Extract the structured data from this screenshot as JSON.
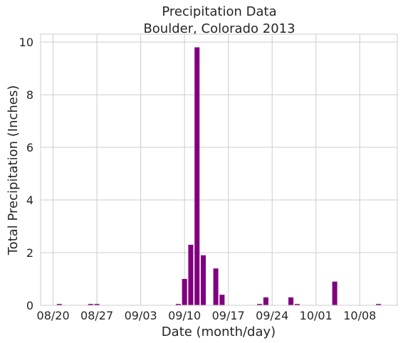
{
  "chart_data": {
    "type": "bar",
    "title": [
      "Precipitation Data",
      "Boulder, Colorado 2013"
    ],
    "xlabel": "Date (month/day)",
    "ylabel": "Total Precipitation (Inches)",
    "xlim": [
      "2013-08-18",
      "2013-10-14"
    ],
    "ylim": [
      0,
      10.3
    ],
    "grid": true,
    "bar_color": "#800080",
    "x_ticks": [
      {
        "date": "2013-08-20",
        "label": "08/20"
      },
      {
        "date": "2013-08-27",
        "label": "08/27"
      },
      {
        "date": "2013-09-03",
        "label": "09/03"
      },
      {
        "date": "2013-09-10",
        "label": "09/10"
      },
      {
        "date": "2013-09-17",
        "label": "09/17"
      },
      {
        "date": "2013-09-24",
        "label": "09/24"
      },
      {
        "date": "2013-10-01",
        "label": "10/01"
      },
      {
        "date": "2013-10-08",
        "label": "10/08"
      }
    ],
    "y_ticks": [
      0,
      2,
      4,
      6,
      8,
      10
    ],
    "data": [
      {
        "date": "2013-08-21",
        "value": 0.05
      },
      {
        "date": "2013-08-26",
        "value": 0.05
      },
      {
        "date": "2013-08-27",
        "value": 0.05
      },
      {
        "date": "2013-09-09",
        "value": 0.05
      },
      {
        "date": "2013-09-10",
        "value": 1.0
      },
      {
        "date": "2013-09-11",
        "value": 2.3
      },
      {
        "date": "2013-09-12",
        "value": 9.8
      },
      {
        "date": "2013-09-13",
        "value": 1.9
      },
      {
        "date": "2013-09-15",
        "value": 1.4
      },
      {
        "date": "2013-09-16",
        "value": 0.4
      },
      {
        "date": "2013-09-22",
        "value": 0.05
      },
      {
        "date": "2013-09-23",
        "value": 0.3
      },
      {
        "date": "2013-09-27",
        "value": 0.3
      },
      {
        "date": "2013-09-28",
        "value": 0.05
      },
      {
        "date": "2013-10-04",
        "value": 0.9
      },
      {
        "date": "2013-10-11",
        "value": 0.05
      }
    ]
  }
}
